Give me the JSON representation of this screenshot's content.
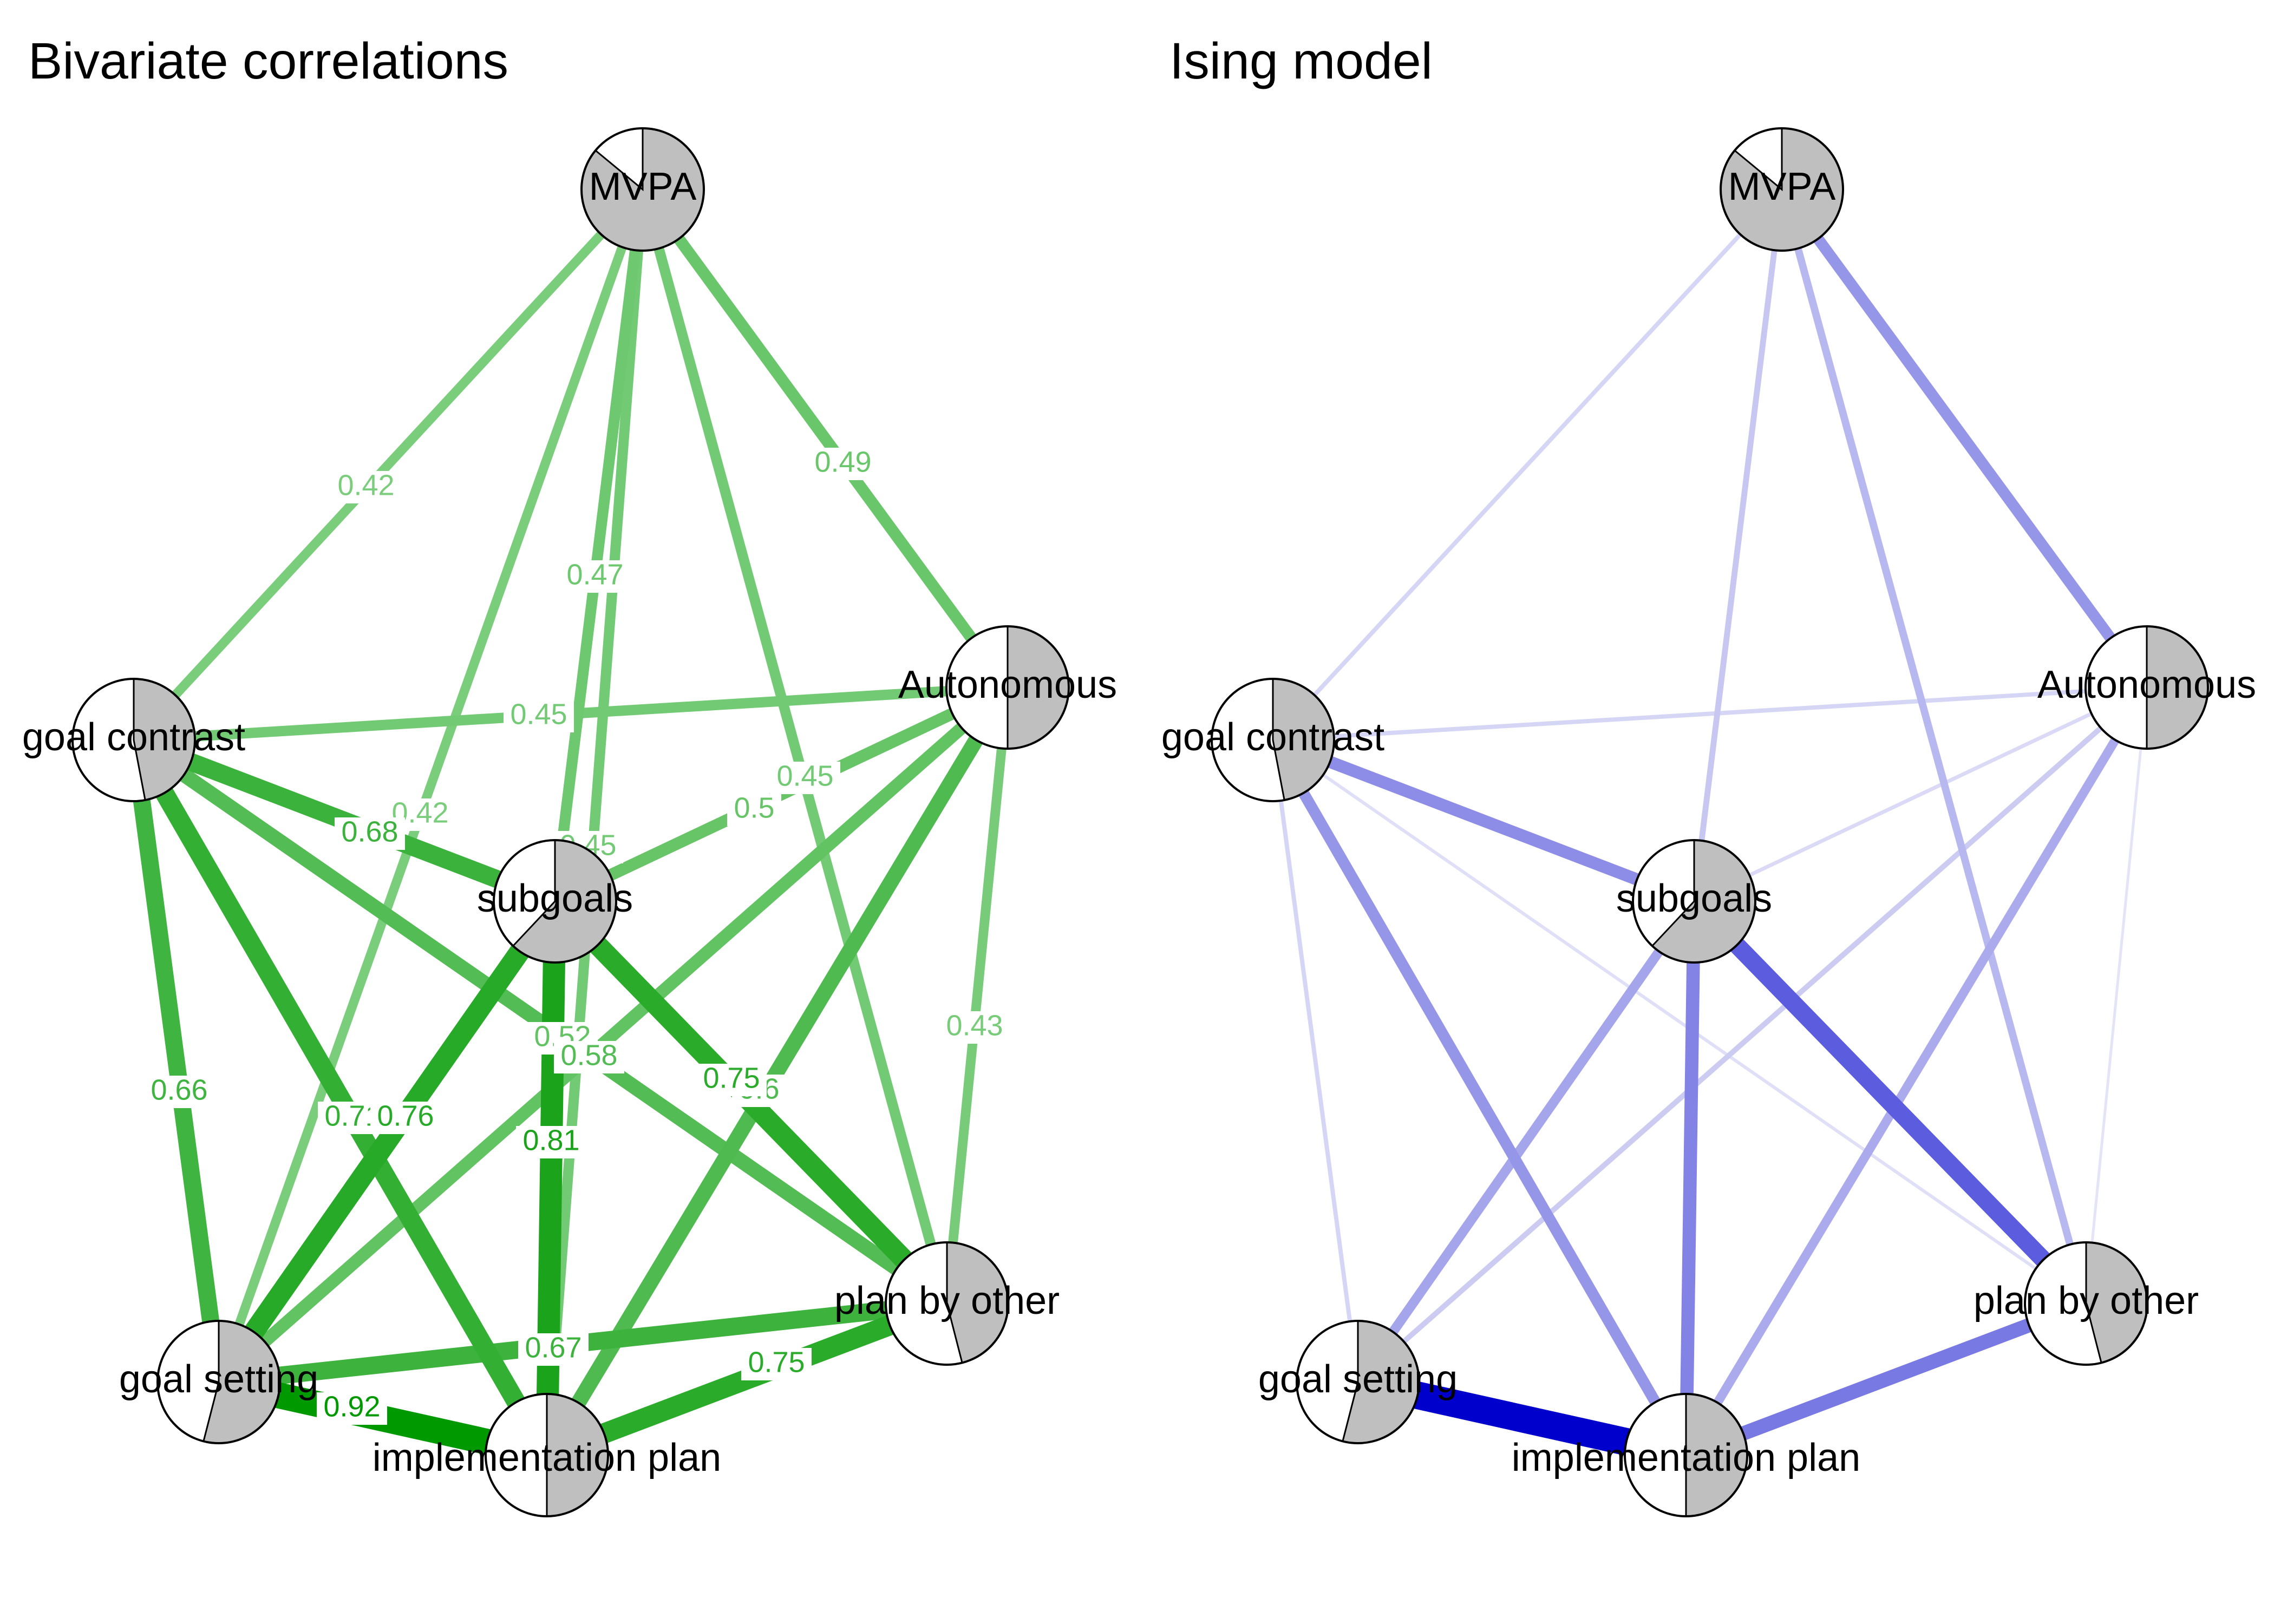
{
  "panels": [
    {
      "id": "correlations",
      "title": "Bivariate correlations",
      "edge_color_strong": "#009900",
      "edge_color_weak": "#7fcf80",
      "show_edge_labels": true,
      "nodes": [
        {
          "id": "mvpa",
          "label": "MVPA",
          "pie_fraction": 0.86
        },
        {
          "id": "autonomous",
          "label": "Autonomous",
          "pie_fraction": 0.5
        },
        {
          "id": "goal_contrast",
          "label": "goal contrast",
          "pie_fraction": 0.47
        },
        {
          "id": "subgoals",
          "label": "subgoals",
          "pie_fraction": 0.62
        },
        {
          "id": "plan_by_other",
          "label": "plan by other",
          "pie_fraction": 0.46
        },
        {
          "id": "goal_setting",
          "label": "goal setting",
          "pie_fraction": 0.54
        },
        {
          "id": "implementation_plan",
          "label": "implementation plan",
          "pie_fraction": 0.5
        }
      ],
      "edges": [
        {
          "from": "mvpa",
          "to": "goal_contrast",
          "weight": 0.42,
          "label": "0.42"
        },
        {
          "from": "mvpa",
          "to": "autonomous",
          "weight": 0.49,
          "label": "0.49"
        },
        {
          "from": "mvpa",
          "to": "subgoals",
          "weight": 0.47,
          "label": "0.47"
        },
        {
          "from": "mvpa",
          "to": "goal_setting",
          "weight": 0.42,
          "label": "0.42"
        },
        {
          "from": "mvpa",
          "to": "implementation_plan",
          "weight": 0.45,
          "label": "0.45"
        },
        {
          "from": "mvpa",
          "to": "plan_by_other",
          "weight": 0.45,
          "label": "0.45"
        },
        {
          "from": "goal_contrast",
          "to": "autonomous",
          "weight": 0.45,
          "label": "0.45"
        },
        {
          "from": "goal_contrast",
          "to": "subgoals",
          "weight": 0.68,
          "label": "0.68"
        },
        {
          "from": "goal_contrast",
          "to": "goal_setting",
          "weight": 0.66,
          "label": "0.66"
        },
        {
          "from": "goal_contrast",
          "to": "implementation_plan",
          "weight": 0.71,
          "label": "0.71"
        },
        {
          "from": "goal_contrast",
          "to": "plan_by_other",
          "weight": 0.58,
          "label": "0.58"
        },
        {
          "from": "autonomous",
          "to": "subgoals",
          "weight": 0.5,
          "label": "0.5"
        },
        {
          "from": "autonomous",
          "to": "goal_setting",
          "weight": 0.52,
          "label": "0.52"
        },
        {
          "from": "autonomous",
          "to": "implementation_plan",
          "weight": 0.6,
          "label": "0.6"
        },
        {
          "from": "autonomous",
          "to": "plan_by_other",
          "weight": 0.43,
          "label": "0.43"
        },
        {
          "from": "subgoals",
          "to": "goal_setting",
          "weight": 0.76,
          "label": "0.76"
        },
        {
          "from": "subgoals",
          "to": "implementation_plan",
          "weight": 0.81,
          "label": "0.81"
        },
        {
          "from": "subgoals",
          "to": "plan_by_other",
          "weight": 0.75,
          "label": "0.75"
        },
        {
          "from": "goal_setting",
          "to": "plan_by_other",
          "weight": 0.67,
          "label": "0.67"
        },
        {
          "from": "goal_setting",
          "to": "implementation_plan",
          "weight": 0.92,
          "label": "0.92"
        },
        {
          "from": "implementation_plan",
          "to": "plan_by_other",
          "weight": 0.75,
          "label": "0.75"
        }
      ]
    },
    {
      "id": "ising",
      "title": "Ising model",
      "edge_color_strong": "#0000cc",
      "edge_color_weak": "#e4e4f8",
      "show_edge_labels": false,
      "nodes": [
        {
          "id": "mvpa",
          "label": "MVPA",
          "pie_fraction": 0.86
        },
        {
          "id": "autonomous",
          "label": "Autonomous",
          "pie_fraction": 0.5
        },
        {
          "id": "goal_contrast",
          "label": "goal contrast",
          "pie_fraction": 0.47
        },
        {
          "id": "subgoals",
          "label": "subgoals",
          "pie_fraction": 0.62
        },
        {
          "id": "plan_by_other",
          "label": "plan by other",
          "pie_fraction": 0.46
        },
        {
          "id": "goal_setting",
          "label": "goal setting",
          "pie_fraction": 0.54
        },
        {
          "id": "implementation_plan",
          "label": "implementation plan",
          "pie_fraction": 0.5
        }
      ],
      "edges": [
        {
          "from": "mvpa",
          "to": "goal_contrast",
          "weight": 0.12
        },
        {
          "from": "mvpa",
          "to": "autonomous",
          "weight": 0.38
        },
        {
          "from": "mvpa",
          "to": "subgoals",
          "weight": 0.18
        },
        {
          "from": "mvpa",
          "to": "plan_by_other",
          "weight": 0.24
        },
        {
          "from": "goal_contrast",
          "to": "autonomous",
          "weight": 0.12
        },
        {
          "from": "goal_contrast",
          "to": "subgoals",
          "weight": 0.42
        },
        {
          "from": "goal_contrast",
          "to": "goal_setting",
          "weight": 0.12
        },
        {
          "from": "goal_contrast",
          "to": "implementation_plan",
          "weight": 0.38
        },
        {
          "from": "goal_contrast",
          "to": "plan_by_other",
          "weight": 0.08
        },
        {
          "from": "autonomous",
          "to": "subgoals",
          "weight": 0.1
        },
        {
          "from": "autonomous",
          "to": "goal_setting",
          "weight": 0.16
        },
        {
          "from": "autonomous",
          "to": "implementation_plan",
          "weight": 0.3
        },
        {
          "from": "autonomous",
          "to": "plan_by_other",
          "weight": 0.06
        },
        {
          "from": "subgoals",
          "to": "goal_setting",
          "weight": 0.32
        },
        {
          "from": "subgoals",
          "to": "implementation_plan",
          "weight": 0.46
        },
        {
          "from": "subgoals",
          "to": "plan_by_other",
          "weight": 0.62
        },
        {
          "from": "goal_setting",
          "to": "implementation_plan",
          "weight": 1.0
        },
        {
          "from": "implementation_plan",
          "to": "plan_by_other",
          "weight": 0.5
        }
      ]
    }
  ]
}
